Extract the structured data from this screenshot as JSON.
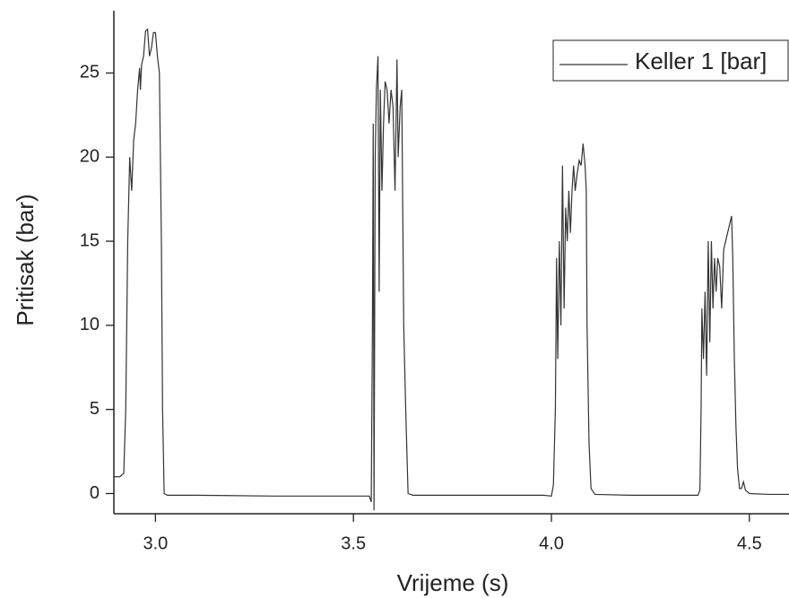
{
  "chart_data": {
    "type": "line",
    "xlabel": "Vrijeme (s)",
    "ylabel": "Pritisak (bar)",
    "x": [
      2.895,
      2.91,
      2.92,
      2.925,
      2.93,
      2.935,
      2.94,
      2.945,
      2.95,
      2.955,
      2.96,
      2.962,
      2.965,
      2.97,
      2.975,
      2.98,
      2.985,
      2.99,
      2.995,
      3.0,
      3.005,
      3.01,
      3.015,
      3.018,
      3.022,
      3.03,
      3.1,
      3.3,
      3.5,
      3.54,
      3.545,
      3.548,
      3.55,
      3.552,
      3.555,
      3.558,
      3.562,
      3.565,
      3.568,
      3.572,
      3.576,
      3.58,
      3.585,
      3.59,
      3.595,
      3.6,
      3.605,
      3.61,
      3.613,
      3.618,
      3.622,
      3.627,
      3.632,
      3.638,
      3.65,
      3.8,
      3.98,
      4.0,
      4.005,
      4.01,
      4.013,
      4.016,
      4.02,
      4.024,
      4.028,
      4.032,
      4.036,
      4.04,
      4.044,
      4.048,
      4.052,
      4.056,
      4.06,
      4.065,
      4.07,
      4.075,
      4.08,
      4.085,
      4.088,
      4.09,
      4.095,
      4.1,
      4.11,
      4.2,
      4.37,
      4.375,
      4.378,
      4.38,
      4.384,
      4.388,
      4.392,
      4.396,
      4.4,
      4.404,
      4.408,
      4.412,
      4.416,
      4.42,
      4.425,
      4.43,
      4.435,
      4.44,
      4.445,
      4.45,
      4.455,
      4.458,
      4.462,
      4.466,
      4.47,
      4.475,
      4.48,
      4.485,
      4.49,
      4.5,
      4.55,
      4.6
    ],
    "series": [
      {
        "name": "Keller 1 [bar]",
        "color": "#333333",
        "values": [
          1.0,
          1.0,
          1.2,
          5,
          15,
          20,
          18,
          21,
          22,
          24,
          25.3,
          24,
          25.5,
          26,
          27.5,
          27.6,
          26,
          26.5,
          27.4,
          27.4,
          26,
          25,
          15,
          5,
          0,
          -0.1,
          -0.1,
          -0.15,
          -0.15,
          -0.15,
          -0.5,
          10,
          22,
          -1,
          20,
          24,
          26,
          12,
          24,
          18,
          22,
          24.5,
          24,
          22,
          24,
          23,
          18,
          25.8,
          20,
          23,
          24,
          10,
          5,
          0,
          -0.1,
          -0.1,
          -0.1,
          -0.15,
          0.5,
          5,
          14,
          8,
          15,
          10,
          19.5,
          11,
          17,
          15,
          18,
          15.5,
          18,
          19.5,
          18,
          19,
          19.8,
          19.5,
          20.8,
          19.5,
          18,
          10,
          3,
          0.3,
          -0.05,
          -0.1,
          -0.1,
          0.2,
          5,
          11,
          8,
          12,
          7,
          15,
          9,
          15,
          11,
          14,
          12,
          14,
          13.5,
          11,
          14.5,
          15,
          15.5,
          16,
          16.5,
          14,
          8,
          4,
          1.5,
          0.3,
          0.3,
          0.7,
          0.2,
          0.0,
          -0.05,
          -0.05
        ]
      }
    ],
    "xlim": [
      2.895,
      4.6
    ],
    "ylim": [
      -1.2,
      28.7
    ],
    "xticks": [
      {
        "value": 3,
        "label": "3.0"
      },
      3.5,
      {
        "value": 4,
        "label": "4.0"
      },
      4.5
    ],
    "yticks": [
      0,
      5,
      10,
      15,
      20,
      25
    ],
    "legend": "upper right"
  }
}
